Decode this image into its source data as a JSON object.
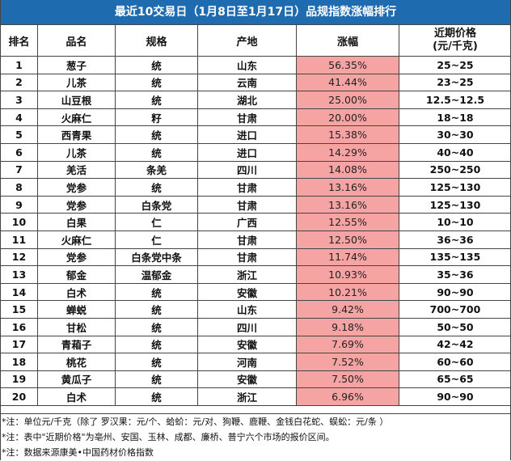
{
  "title": "最近10交易日（1月8日至1月17日）品规指数涨幅排行",
  "headers": [
    "排名",
    "品名",
    "规格",
    "产地",
    "涨幅",
    "近期价格\n(元/千克)"
  ],
  "header_price_line1": "近期价格",
  "header_price_line2": "(元/千克)",
  "rows": [
    {
      "rank": "1",
      "name": "葱子",
      "spec": "统",
      "origin": "山东",
      "rise": "56.35%",
      "price": "25~25"
    },
    {
      "rank": "2",
      "name": "儿茶",
      "spec": "统",
      "origin": "云南",
      "rise": "41.44%",
      "price": "23~25"
    },
    {
      "rank": "3",
      "name": "山豆根",
      "spec": "统",
      "origin": "湖北",
      "rise": "25.00%",
      "price": "12.5~12.5"
    },
    {
      "rank": "4",
      "name": "火麻仁",
      "spec": "籽",
      "origin": "甘肃",
      "rise": "20.00%",
      "price": "18~18"
    },
    {
      "rank": "5",
      "name": "西青果",
      "spec": "统",
      "origin": "进口",
      "rise": "15.38%",
      "price": "30~30"
    },
    {
      "rank": "6",
      "name": "儿茶",
      "spec": "统",
      "origin": "进口",
      "rise": "14.29%",
      "price": "40~40"
    },
    {
      "rank": "7",
      "name": "羌活",
      "spec": "条羌",
      "origin": "四川",
      "rise": "14.08%",
      "price": "250~250"
    },
    {
      "rank": "8",
      "name": "党参",
      "spec": "统",
      "origin": "甘肃",
      "rise": "13.16%",
      "price": "125~130"
    },
    {
      "rank": "9",
      "name": "党参",
      "spec": "白条党",
      "origin": "甘肃",
      "rise": "13.16%",
      "price": "125~130"
    },
    {
      "rank": "10",
      "name": "白果",
      "spec": "仁",
      "origin": "广西",
      "rise": "12.55%",
      "price": "10~10"
    },
    {
      "rank": "11",
      "name": "火麻仁",
      "spec": "仁",
      "origin": "甘肃",
      "rise": "12.50%",
      "price": "36~36"
    },
    {
      "rank": "12",
      "name": "党参",
      "spec": "白条党中条",
      "origin": "甘肃",
      "rise": "11.74%",
      "price": "135~135"
    },
    {
      "rank": "13",
      "name": "郁金",
      "spec": "温郁金",
      "origin": "浙江",
      "rise": "10.93%",
      "price": "35~36"
    },
    {
      "rank": "14",
      "name": "白术",
      "spec": "统",
      "origin": "安徽",
      "rise": "10.21%",
      "price": "90~90"
    },
    {
      "rank": "15",
      "name": "蝉蜕",
      "spec": "统",
      "origin": "山东",
      "rise": "9.42%",
      "price": "700~700"
    },
    {
      "rank": "16",
      "name": "甘松",
      "spec": "统",
      "origin": "四川",
      "rise": "9.18%",
      "price": "50~50"
    },
    {
      "rank": "17",
      "name": "青葙子",
      "spec": "统",
      "origin": "安徽",
      "rise": "7.69%",
      "price": "42~42"
    },
    {
      "rank": "18",
      "name": "桃花",
      "spec": "统",
      "origin": "河南",
      "rise": "7.52%",
      "price": "60~60"
    },
    {
      "rank": "19",
      "name": "黄瓜子",
      "spec": "统",
      "origin": "安徽",
      "rise": "7.50%",
      "price": "65~65"
    },
    {
      "rank": "20",
      "name": "白术",
      "spec": "统",
      "origin": "浙江",
      "rise": "6.96%",
      "price": "90~90"
    }
  ],
  "notes": [
    "*注：单位元/千克（除了 罗汉果：元/个、蛤蚧：元/对、狗鞭、鹿鞭、金钱白花蛇、蜈蚣：元/条 ）",
    "*注：表中\"近期价格\"为亳州、安国、玉林、成都、廉桥、普宁六个市场的报价区间。",
    "*注：数据来源康美•中国药材价格指数"
  ],
  "colors": {
    "title_bg": "#1f6bb0",
    "rise_bg": "#f6a3a3"
  }
}
